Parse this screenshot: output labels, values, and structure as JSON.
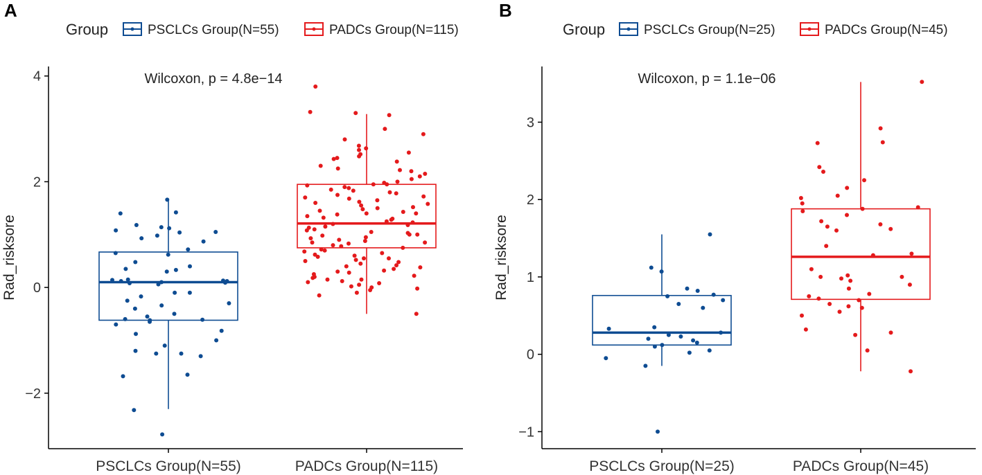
{
  "panels": [
    {
      "panel_label": "A",
      "legend": {
        "title": "Group",
        "entries": [
          "PSCLCs Group(N=55)",
          "PADCs Group(N=115)"
        ]
      },
      "colors": [
        "#0e4c92",
        "#e41a1c"
      ],
      "chart_data": {
        "type": "box",
        "title": "",
        "annotation": "Wilcoxon, p = 4.8e−14",
        "xlabel": "",
        "ylabel": "Rad_risksore",
        "categories": [
          "PSCLCs Group(N=55)",
          "PADCs Group(N=115)"
        ],
        "ylim": [
          -3.05,
          4.18
        ],
        "yticks": [
          4,
          2,
          0,
          -2
        ],
        "ytick_labels": [
          "4",
          "2",
          "0",
          "−2"
        ],
        "boxes": [
          {
            "name": "PSCLCs Group(N=55)",
            "whisker_low": -2.3,
            "q1": -0.62,
            "median": 0.1,
            "q3": 0.67,
            "whisker_high": 1.66
          },
          {
            "name": "PADCs Group(N=115)",
            "whisker_low": -0.5,
            "q1": 0.75,
            "median": 1.21,
            "q3": 1.95,
            "whisker_high": 3.28
          }
        ],
        "points": [
          [
            1.66,
            1.42,
            1.4,
            1.18,
            1.14,
            1.12,
            1.08,
            1.05,
            1.04,
            0.98,
            0.93,
            0.87,
            0.72,
            0.65,
            0.62,
            0.48,
            0.4,
            0.35,
            0.33,
            0.3,
            0.15,
            0.14,
            0.13,
            0.12,
            0.12,
            0.1,
            0.09,
            0.08,
            0.06,
            -0.1,
            -0.1,
            -0.17,
            -0.25,
            -0.3,
            -0.34,
            -0.4,
            -0.5,
            -0.55,
            -0.6,
            -0.61,
            -0.62,
            -0.65,
            -0.7,
            -0.82,
            -0.88,
            -1.0,
            -1.1,
            -1.2,
            -1.25,
            -1.25,
            -1.3,
            -1.65,
            -1.68,
            -2.32,
            -2.78
          ],
          [
            3.8,
            3.32,
            3.3,
            3.26,
            3.0,
            2.9,
            2.8,
            2.68,
            2.63,
            2.6,
            2.55,
            2.52,
            2.48,
            2.45,
            2.43,
            2.38,
            2.3,
            2.25,
            2.22,
            2.2,
            2.15,
            2.1,
            2.05,
            2.0,
            1.98,
            1.95,
            1.93,
            1.9,
            1.88,
            1.85,
            1.83,
            1.8,
            1.78,
            1.75,
            1.72,
            1.7,
            1.68,
            1.65,
            1.62,
            1.6,
            1.58,
            1.55,
            1.52,
            1.5,
            1.48,
            1.45,
            1.43,
            1.4,
            1.38,
            1.35,
            1.32,
            1.3,
            1.28,
            1.25,
            1.23,
            1.2,
            1.18,
            1.15,
            1.13,
            1.1,
            1.08,
            1.05,
            1.03,
            1.0,
            0.98,
            0.95,
            0.93,
            0.9,
            0.88,
            0.85,
            0.83,
            0.8,
            0.78,
            0.75,
            0.72,
            0.7,
            0.68,
            0.65,
            0.62,
            0.6,
            0.58,
            0.55,
            0.52,
            0.5,
            0.48,
            0.45,
            0.42,
            0.4,
            0.38,
            0.35,
            0.32,
            0.3,
            0.28,
            0.25,
            0.22,
            0.2,
            0.18,
            0.15,
            0.12,
            0.1,
            0.08,
            0.05,
            0.02,
            0.0,
            -0.02,
            -0.05,
            -0.1,
            -0.15,
            -0.5,
            1.95,
            1.4,
            1.0,
            0.55,
            0.15,
            0.85
          ]
        ]
      }
    },
    {
      "panel_label": "B",
      "legend": {
        "title": "Group",
        "entries": [
          "PSCLCs Group(N=25)",
          "PADCs Group(N=45)"
        ]
      },
      "colors": [
        "#0e4c92",
        "#e41a1c"
      ],
      "chart_data": {
        "type": "box",
        "title": "",
        "annotation": "Wilcoxon, p = 1.1e−06",
        "xlabel": "",
        "ylabel": "Rad_risksore",
        "categories": [
          "PSCLCs Group(N=25)",
          "PADCs Group(N=45)"
        ],
        "ylim": [
          -1.22,
          3.72
        ],
        "yticks": [
          3,
          2,
          1,
          0,
          -1
        ],
        "ytick_labels": [
          "3",
          "2",
          "1",
          "0",
          "−1"
        ],
        "boxes": [
          {
            "name": "PSCLCs Group(N=25)",
            "whisker_low": -0.15,
            "q1": 0.12,
            "median": 0.28,
            "q3": 0.76,
            "whisker_high": 1.55
          },
          {
            "name": "PADCs Group(N=45)",
            "whisker_low": -0.22,
            "q1": 0.71,
            "median": 1.26,
            "q3": 1.88,
            "whisker_high": 3.52
          }
        ],
        "points": [
          [
            1.55,
            1.12,
            1.07,
            0.85,
            0.82,
            0.77,
            0.75,
            0.7,
            0.65,
            0.6,
            0.35,
            0.33,
            0.28,
            0.25,
            0.23,
            0.2,
            0.18,
            0.15,
            0.12,
            0.1,
            0.05,
            0.02,
            -0.05,
            -0.15,
            -1.0
          ],
          [
            3.52,
            2.92,
            2.73,
            2.74,
            2.42,
            2.36,
            2.25,
            2.05,
            2.02,
            1.9,
            1.88,
            1.85,
            1.8,
            1.72,
            1.68,
            1.65,
            1.62,
            1.6,
            1.3,
            1.28,
            1.02,
            1.0,
            1.0,
            0.98,
            0.95,
            0.9,
            0.78,
            0.75,
            0.72,
            0.7,
            0.65,
            0.62,
            0.6,
            0.55,
            0.5,
            0.32,
            0.28,
            0.25,
            0.05,
            -0.22,
            1.1,
            0.85,
            1.4,
            2.15,
            1.95
          ]
        ]
      }
    }
  ]
}
